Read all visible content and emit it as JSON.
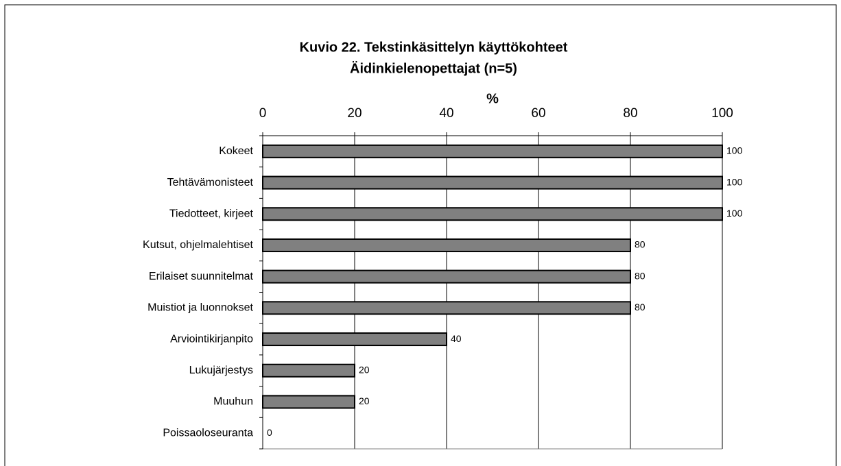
{
  "chart_data": {
    "type": "bar",
    "orientation": "horizontal",
    "title": "Kuvio 22. Tekstinkäsittelyn käyttökohteet",
    "subtitle": "Äidinkielenopettajat (n=5)",
    "x_label": "%",
    "categories": [
      "Kokeet",
      "Tehtävämonisteet",
      "Tiedotteet, kirjeet",
      "Kutsut, ohjelmalehtiset",
      "Erilaiset suunnitelmat",
      "Muistiot ja luonnokset",
      "Arviointikirjanpito",
      "Lukujärjestys",
      "Muuhun",
      "Poissaoloseuranta"
    ],
    "values": [
      100,
      100,
      100,
      80,
      80,
      80,
      40,
      20,
      20,
      0
    ],
    "color": "#808080",
    "xlim": [
      0,
      100
    ],
    "xticks": [
      0,
      20,
      40,
      60,
      80,
      100
    ],
    "grid": true
  }
}
